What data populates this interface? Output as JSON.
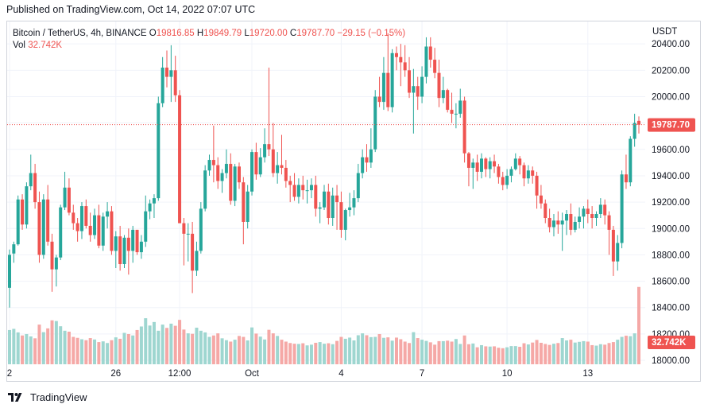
{
  "header": {
    "published": "Published on TradingView.com, Oct 14, 2022 07:07 UTC"
  },
  "legend": {
    "symbol": "Bitcoin / TetherUS, 4h, BINANCE",
    "o_label": "O",
    "o_value": "19816.85",
    "h_label": "H",
    "h_value": "19849.79",
    "l_label": "L",
    "l_value": "19720.00",
    "c_label": "C",
    "c_value": "19787.70",
    "change": "−29.15 (−0.15%)",
    "vol_label": "Vol",
    "vol_value": "32.742K"
  },
  "footer": {
    "brand": "TradingView",
    "logo_icon": "tradingview-logo-icon"
  },
  "colors": {
    "up": "#26a69a",
    "down": "#ef5350",
    "up_vol": "#9ed6d0",
    "down_vol": "#f5a8a6",
    "grid": "#f0f3fa",
    "text": "#131722",
    "last_line": "#ef5350",
    "vol_badge": "#ef5350"
  },
  "chart_data": {
    "type": "candlestick",
    "title": "Bitcoin / TetherUS, 4h, BINANCE",
    "currency": "USDT",
    "ylim": [
      17970,
      20570
    ],
    "y_ticks": [
      18000,
      18200,
      18400,
      18600,
      18800,
      19000,
      19200,
      19400,
      19600,
      19800,
      20000,
      20200,
      20400
    ],
    "y_tick_labels": [
      "18000.00",
      "18200.00",
      "18400.00",
      "18600.00",
      "18800.00",
      "19000.00",
      "19200.00",
      "19400.00",
      "19600.00",
      "19800.00",
      "20000.00",
      "20200.00",
      "20400.00"
    ],
    "x_ticks": [
      {
        "label": "2",
        "index": 0
      },
      {
        "label": "26",
        "index": 25
      },
      {
        "label": "12:00",
        "index": 40
      },
      {
        "label": "Oct",
        "index": 57
      },
      {
        "label": "4",
        "index": 78
      },
      {
        "label": "7",
        "index": 97
      },
      {
        "label": "10",
        "index": 117
      },
      {
        "label": "13",
        "index": 136
      }
    ],
    "last_price": 19787.7,
    "last_price_label": "19787.70",
    "volume_label": "32.742K",
    "candles": [
      [
        18550,
        18840,
        18400,
        18800,
        14.5
      ],
      [
        18810,
        18900,
        18740,
        18880,
        15.0
      ],
      [
        18880,
        19250,
        18870,
        19220,
        13.5
      ],
      [
        19220,
        19260,
        18990,
        19030,
        12.2
      ],
      [
        19030,
        19350,
        19000,
        19320,
        12.8
      ],
      [
        19320,
        19560,
        19290,
        19420,
        11.8
      ],
      [
        19420,
        19490,
        19150,
        19200,
        11.0
      ],
      [
        19200,
        19280,
        18740,
        18800,
        16.8
      ],
      [
        18800,
        19260,
        18770,
        19220,
        13.6
      ],
      [
        19220,
        19330,
        18870,
        18900,
        15.2
      ],
      [
        18900,
        18960,
        18520,
        18690,
        18.6
      ],
      [
        18690,
        18800,
        18560,
        18780,
        18.3
      ],
      [
        18780,
        19180,
        18760,
        19160,
        16.1
      ],
      [
        19160,
        19430,
        19140,
        19310,
        14.2
      ],
      [
        19310,
        19380,
        19100,
        19120,
        13.8
      ],
      [
        19120,
        19180,
        18990,
        19040,
        11.6
      ],
      [
        19040,
        19080,
        18900,
        18980,
        11.2
      ],
      [
        18980,
        19200,
        18920,
        19170,
        10.6
      ],
      [
        19170,
        19220,
        19000,
        19020,
        10.2
      ],
      [
        19020,
        19120,
        18900,
        18950,
        11.1
      ],
      [
        18950,
        19150,
        18920,
        19100,
        10.5
      ],
      [
        19100,
        19180,
        18850,
        18870,
        9.4
      ],
      [
        18870,
        19120,
        18830,
        19090,
        9.7
      ],
      [
        19090,
        19200,
        19000,
        19130,
        9.0
      ],
      [
        19130,
        19170,
        18800,
        18830,
        10.2
      ],
      [
        18830,
        18980,
        18700,
        18940,
        11.4
      ],
      [
        18940,
        19020,
        18680,
        18730,
        10.8
      ],
      [
        18730,
        18950,
        18700,
        18930,
        13.3
      ],
      [
        18930,
        19000,
        18650,
        18830,
        12.8
      ],
      [
        18830,
        19020,
        18740,
        18990,
        12.2
      ],
      [
        18990,
        18990,
        18800,
        18820,
        14.5
      ],
      [
        18820,
        18950,
        18770,
        18900,
        16.0
      ],
      [
        18900,
        19250,
        18860,
        19130,
        19.5
      ],
      [
        19130,
        19220,
        19070,
        19190,
        16.4
      ],
      [
        19190,
        19260,
        19080,
        19230,
        17.9
      ],
      [
        19230,
        20000,
        19210,
        19950,
        14.2
      ],
      [
        19950,
        20300,
        19920,
        20220,
        16.8
      ],
      [
        20220,
        20350,
        20070,
        20150,
        15.4
      ],
      [
        20150,
        20390,
        19960,
        20200,
        17.2
      ],
      [
        20200,
        20310,
        19960,
        20010,
        16.3
      ],
      [
        20010,
        20050,
        19040,
        19040,
        18.8
      ],
      [
        19040,
        19080,
        18720,
        18960,
        14.7
      ],
      [
        18960,
        19040,
        18750,
        18960,
        13.1
      ],
      [
        18960,
        19050,
        18510,
        18680,
        12.9
      ],
      [
        18680,
        18900,
        18640,
        18830,
        15.5
      ],
      [
        18830,
        19200,
        18810,
        19150,
        14.2
      ],
      [
        19150,
        19480,
        19130,
        19440,
        13.5
      ],
      [
        19440,
        19560,
        19400,
        19520,
        11.6
      ],
      [
        19520,
        19780,
        19350,
        19480,
        12.2
      ],
      [
        19480,
        19540,
        19300,
        19360,
        13.1
      ],
      [
        19360,
        19450,
        19270,
        19420,
        11.0
      ],
      [
        19420,
        19600,
        19380,
        19490,
        10.2
      ],
      [
        19490,
        19570,
        19180,
        19210,
        9.6
      ],
      [
        19210,
        19490,
        19170,
        19470,
        10.4
      ],
      [
        19470,
        19500,
        19300,
        19350,
        12.0
      ],
      [
        19350,
        19390,
        18880,
        19050,
        11.6
      ],
      [
        19050,
        19330,
        19000,
        19280,
        10.1
      ],
      [
        19280,
        19600,
        19250,
        19580,
        15.6
      ],
      [
        19580,
        19650,
        19370,
        19410,
        13.0
      ],
      [
        19410,
        19610,
        19390,
        19540,
        11.7
      ],
      [
        19540,
        19760,
        19500,
        19640,
        10.5
      ],
      [
        19640,
        20220,
        19550,
        19600,
        14.6
      ],
      [
        19600,
        19800,
        19390,
        19420,
        13.1
      ],
      [
        19420,
        19580,
        19340,
        19480,
        12.0
      ],
      [
        19480,
        19710,
        19410,
        19460,
        10.4
      ],
      [
        19460,
        19520,
        19310,
        19360,
        9.6
      ],
      [
        19360,
        19400,
        19200,
        19330,
        9.0
      ],
      [
        19330,
        19420,
        19210,
        19240,
        8.7
      ],
      [
        19240,
        19380,
        19190,
        19330,
        8.6
      ],
      [
        19330,
        19400,
        19220,
        19290,
        8.9
      ],
      [
        19290,
        19370,
        19190,
        19290,
        8.0
      ],
      [
        19290,
        19380,
        19230,
        19330,
        8.3
      ],
      [
        19330,
        19400,
        19090,
        19150,
        9.1
      ],
      [
        19150,
        19200,
        19040,
        19160,
        9.4
      ],
      [
        19160,
        19330,
        19140,
        19280,
        8.7
      ],
      [
        19280,
        19340,
        19030,
        19080,
        8.9
      ],
      [
        19080,
        19310,
        19020,
        19250,
        8.5
      ],
      [
        19250,
        19330,
        18990,
        19200,
        9.9
      ],
      [
        19200,
        19280,
        18930,
        18990,
        11.6
      ],
      [
        18990,
        19150,
        18910,
        19140,
        10.8
      ],
      [
        19140,
        19270,
        19090,
        19160,
        11.3
      ],
      [
        19160,
        19290,
        19100,
        19230,
        10.1
      ],
      [
        19230,
        19490,
        19200,
        19420,
        12.3
      ],
      [
        19420,
        19600,
        19380,
        19540,
        13.1
      ],
      [
        19540,
        19640,
        19430,
        19500,
        12.3
      ],
      [
        19500,
        19760,
        19460,
        19600,
        11.5
      ],
      [
        19600,
        20050,
        19580,
        20000,
        11.6
      ],
      [
        20000,
        20150,
        19920,
        19960,
        12.8
      ],
      [
        19960,
        20300,
        19900,
        20180,
        11.2
      ],
      [
        20180,
        20480,
        19890,
        19920,
        11.4
      ],
      [
        19920,
        20360,
        19880,
        20330,
        10.0
      ],
      [
        20330,
        20380,
        20200,
        20300,
        11.3
      ],
      [
        20300,
        20400,
        20080,
        20260,
        10.6
      ],
      [
        20260,
        20390,
        20150,
        20200,
        9.6
      ],
      [
        20200,
        20300,
        19990,
        20030,
        9.0
      ],
      [
        20030,
        20210,
        19720,
        20080,
        13.6
      ],
      [
        20080,
        20150,
        19900,
        20000,
        11.1
      ],
      [
        20000,
        20230,
        19950,
        20150,
        10.4
      ],
      [
        20150,
        20450,
        20100,
        20380,
        9.9
      ],
      [
        20380,
        20450,
        20220,
        20280,
        9.3
      ],
      [
        20280,
        20370,
        20140,
        20180,
        8.3
      ],
      [
        20180,
        20280,
        19920,
        19990,
        9.8
      ],
      [
        19990,
        20150,
        19950,
        20050,
        9.8
      ],
      [
        20050,
        20060,
        19880,
        19900,
        10.0
      ],
      [
        19900,
        20030,
        19800,
        19870,
        9.6
      ],
      [
        19870,
        19950,
        19760,
        19870,
        10.7
      ],
      [
        19870,
        20060,
        19840,
        19970,
        8.6
      ],
      [
        19970,
        20000,
        19500,
        19570,
        12.2
      ],
      [
        19570,
        19580,
        19320,
        19460,
        8.5
      ],
      [
        19460,
        19530,
        19300,
        19500,
        8.8
      ],
      [
        19500,
        19560,
        19360,
        19430,
        7.2
      ],
      [
        19430,
        19570,
        19380,
        19530,
        8.1
      ],
      [
        19530,
        19540,
        19390,
        19450,
        7.6
      ],
      [
        19450,
        19540,
        19380,
        19510,
        7.5
      ],
      [
        19510,
        19560,
        19420,
        19470,
        7.6
      ],
      [
        19470,
        19490,
        19340,
        19390,
        7.0
      ],
      [
        19390,
        19430,
        19290,
        19330,
        6.8
      ],
      [
        19330,
        19450,
        19300,
        19400,
        7.2
      ],
      [
        19400,
        19470,
        19350,
        19450,
        7.7
      ],
      [
        19450,
        19570,
        19440,
        19530,
        7.7
      ],
      [
        19530,
        19550,
        19410,
        19480,
        7.4
      ],
      [
        19480,
        19500,
        19320,
        19380,
        8.9
      ],
      [
        19380,
        19480,
        19340,
        19440,
        8.4
      ],
      [
        19440,
        19470,
        19340,
        19400,
        9.2
      ],
      [
        19400,
        19430,
        19150,
        19250,
        10.3
      ],
      [
        19250,
        19330,
        19150,
        19190,
        9.1
      ],
      [
        19190,
        19220,
        19040,
        19080,
        8.6
      ],
      [
        19080,
        19150,
        18970,
        19010,
        8.2
      ],
      [
        19010,
        19110,
        18940,
        19060,
        8.7
      ],
      [
        19060,
        19130,
        18960,
        19030,
        9.0
      ],
      [
        19030,
        19120,
        18830,
        19060,
        11.1
      ],
      [
        19060,
        19140,
        18950,
        19110,
        10.1
      ],
      [
        19110,
        19190,
        18950,
        18990,
        10.4
      ],
      [
        18990,
        19090,
        18970,
        19050,
        9.2
      ],
      [
        19050,
        19160,
        19000,
        19090,
        9.5
      ],
      [
        19090,
        19170,
        19000,
        19150,
        9.8
      ],
      [
        19150,
        19220,
        19040,
        19110,
        9.6
      ],
      [
        19110,
        19170,
        19000,
        19080,
        8.1
      ],
      [
        19080,
        19130,
        19020,
        19110,
        7.9
      ],
      [
        19110,
        19230,
        19080,
        19180,
        8.5
      ],
      [
        19180,
        19220,
        19030,
        19100,
        8.3
      ],
      [
        19100,
        19130,
        18800,
        18990,
        9.0
      ],
      [
        18990,
        19020,
        18640,
        18750,
        9.4
      ],
      [
        18750,
        18950,
        18680,
        18890,
        10.4
      ],
      [
        18890,
        19440,
        18850,
        19410,
        11.6
      ],
      [
        19410,
        19560,
        19300,
        19350,
        12.1
      ],
      [
        19350,
        19700,
        19320,
        19680,
        11.9
      ],
      [
        19680,
        19870,
        19620,
        19800,
        13.1
      ],
      [
        19816.85,
        19849.79,
        19720,
        19787.7,
        32.742
      ]
    ]
  }
}
